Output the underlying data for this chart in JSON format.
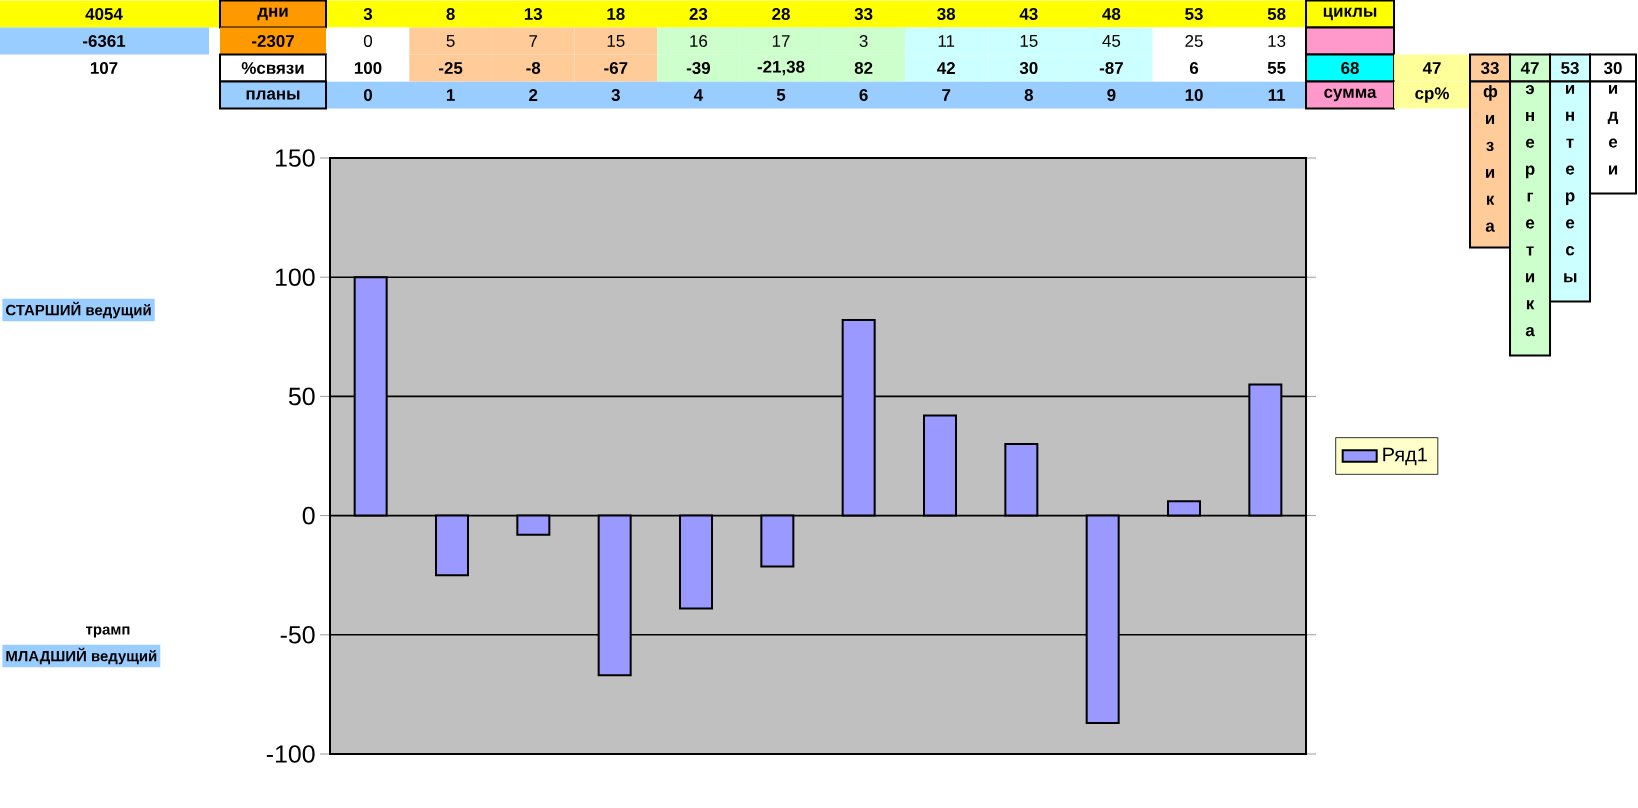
{
  "chart_data": {
    "type": "bar",
    "categories": [
      "0",
      "1",
      "2",
      "3",
      "4",
      "5",
      "6",
      "7",
      "8",
      "9",
      "10",
      "11"
    ],
    "series": [
      {
        "name": "Ряд1",
        "color": "#9999ff",
        "values": [
          100,
          -25,
          -8,
          -67,
          -39,
          -21.38,
          82,
          42,
          30,
          -87,
          6,
          55
        ],
        "value_labels": [
          "100",
          "-25",
          "-8",
          "-67",
          "-39",
          "-21,38",
          "82",
          "42",
          "30",
          "-87",
          "6",
          "55"
        ]
      }
    ],
    "ylim": [
      -100,
      150
    ],
    "yticks": [
      -100,
      -50,
      0,
      50,
      100,
      150
    ],
    "grid": "y",
    "legend": "right",
    "annotations": [
      "4054",
      "дни",
      "3",
      "8",
      "13",
      "18",
      "23",
      "28",
      "33",
      "38",
      "43",
      "48",
      "53",
      "58",
      "циклы",
      "-6361",
      "-2307",
      "0",
      "5",
      "7",
      "15",
      "16",
      "17",
      "3",
      "11",
      "15",
      "45",
      "25",
      "13",
      "107",
      "%связи",
      "68",
      "47",
      "33",
      "47",
      "53",
      "30",
      "планы",
      "сумма",
      "ср%",
      "физика",
      "энергетика",
      "интересы",
      "идеи",
      "СТАРШИЙ ведущий",
      "трамп",
      "МЛАДШИЙ ведущий"
    ]
  }
}
